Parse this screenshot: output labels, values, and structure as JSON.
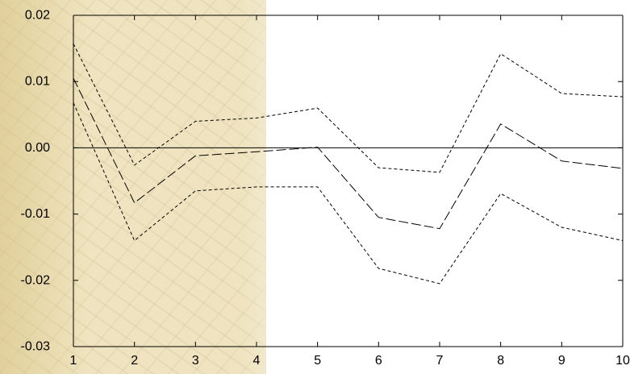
{
  "chart_data": {
    "type": "line",
    "title": "",
    "xlabel": "",
    "ylabel": "",
    "x": [
      1,
      2,
      3,
      4,
      5,
      6,
      7,
      8,
      9,
      10
    ],
    "xlim": [
      1,
      10
    ],
    "ylim": [
      -0.03,
      0.02
    ],
    "x_ticks": [
      "1",
      "2",
      "3",
      "4",
      "5",
      "6",
      "7",
      "8",
      "9",
      "10"
    ],
    "y_ticks": [
      "0.02",
      "0.01",
      "0.00",
      "-0.01",
      "-0.02",
      "-0.03"
    ],
    "y_tick_values": [
      0.02,
      0.01,
      0.0,
      -0.01,
      -0.02,
      -0.03
    ],
    "zero_line": 0.0,
    "series": [
      {
        "style": "long-dash",
        "values": [
          0.0105,
          -0.0083,
          -0.0012,
          -0.0006,
          0.0001,
          -0.0105,
          -0.0122,
          0.0036,
          -0.002,
          -0.0031
        ]
      },
      {
        "style": "short-dash",
        "values": [
          0.0157,
          -0.0026,
          0.004,
          0.0045,
          0.006,
          -0.003,
          -0.0037,
          0.0142,
          0.0082,
          0.0077
        ]
      },
      {
        "style": "short-dash",
        "values": [
          0.0068,
          -0.014,
          -0.0065,
          -0.0059,
          -0.0059,
          -0.0182,
          -0.0205,
          -0.0069,
          -0.012,
          -0.014
        ]
      }
    ],
    "colors": {
      "line": "#000000",
      "background": "#ffffff",
      "texture": "#efe4bf"
    }
  }
}
